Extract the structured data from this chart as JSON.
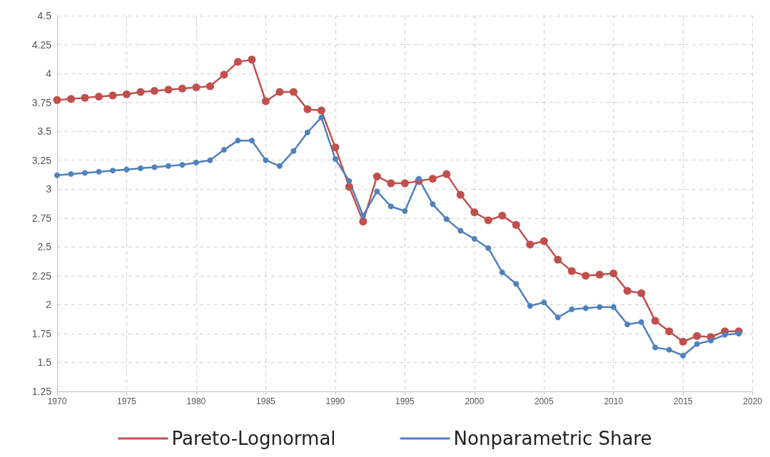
{
  "chart_data": {
    "type": "line",
    "x": [
      1970,
      1971,
      1972,
      1973,
      1974,
      1975,
      1976,
      1977,
      1978,
      1979,
      1980,
      1981,
      1982,
      1983,
      1984,
      1985,
      1986,
      1987,
      1988,
      1989,
      1990,
      1991,
      1992,
      1993,
      1994,
      1995,
      1996,
      1997,
      1998,
      1999,
      2000,
      2001,
      2002,
      2003,
      2004,
      2005,
      2006,
      2007,
      2008,
      2009,
      2010,
      2011,
      2012,
      2013,
      2014,
      2015,
      2016,
      2017,
      2018,
      2019
    ],
    "series": [
      {
        "name": "Pareto-Lognormal",
        "color": "#c0504d",
        "values": [
          3.77,
          3.78,
          3.79,
          3.8,
          3.81,
          3.82,
          3.84,
          3.85,
          3.86,
          3.87,
          3.88,
          3.89,
          3.99,
          4.1,
          4.12,
          3.76,
          3.84,
          3.84,
          3.69,
          3.68,
          3.36,
          3.02,
          2.72,
          3.11,
          3.05,
          3.05,
          3.07,
          3.09,
          3.13,
          2.95,
          2.8,
          2.73,
          2.77,
          2.69,
          2.52,
          2.55,
          2.39,
          2.29,
          2.25,
          2.26,
          2.27,
          2.12,
          2.1,
          1.86,
          1.77,
          1.68,
          1.73,
          1.72,
          1.77,
          1.77
        ]
      },
      {
        "name": "Nonparametric Share",
        "color": "#4f81bd",
        "values": [
          3.12,
          3.13,
          3.14,
          3.15,
          3.16,
          3.17,
          3.18,
          3.19,
          3.2,
          3.21,
          3.23,
          3.25,
          3.34,
          3.42,
          3.42,
          3.25,
          3.2,
          3.33,
          3.49,
          3.62,
          3.26,
          3.07,
          2.77,
          2.98,
          2.85,
          2.81,
          3.09,
          2.87,
          2.74,
          2.64,
          2.57,
          2.49,
          2.28,
          2.18,
          1.99,
          2.02,
          1.89,
          1.96,
          1.97,
          1.98,
          1.98,
          1.83,
          1.85,
          1.63,
          1.61,
          1.56,
          1.66,
          1.69,
          1.74,
          1.75
        ]
      }
    ],
    "xlim": [
      1970,
      2020
    ],
    "xticks": [
      1970,
      1975,
      1980,
      1985,
      1990,
      1995,
      2000,
      2005,
      2010,
      2015,
      2020
    ],
    "ylim": [
      1.25,
      4.5
    ],
    "yticks": [
      1.25,
      1.5,
      1.75,
      2,
      2.25,
      2.5,
      2.75,
      3,
      3.25,
      3.5,
      3.75,
      4,
      4.25,
      4.5
    ],
    "grid": true,
    "legend": "bottom",
    "marker": "circle",
    "line_style": "solid"
  }
}
